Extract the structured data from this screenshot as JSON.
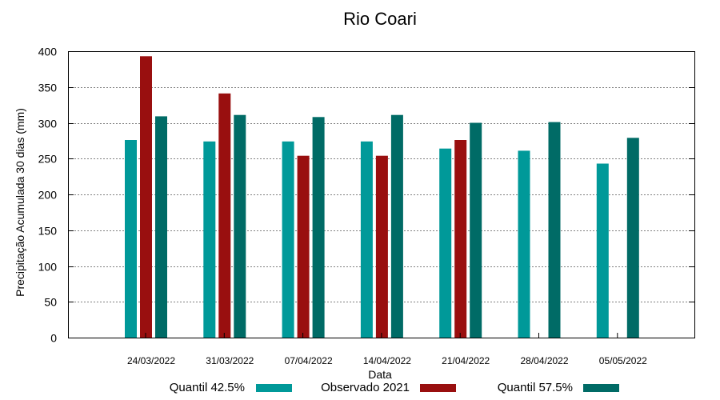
{
  "chart_data": {
    "type": "bar",
    "title": "Rio Coari",
    "xlabel": "Data",
    "ylabel": "Precipitação Acumulada 30 dias (mm)",
    "ylim": [
      0,
      400
    ],
    "yticks": [
      0,
      50,
      100,
      150,
      200,
      250,
      300,
      350,
      400
    ],
    "grid": true,
    "legend_position": "bottom",
    "categories": [
      "24/03/2022",
      "31/03/2022",
      "07/04/2022",
      "14/04/2022",
      "21/04/2022",
      "28/04/2022",
      "05/05/2022"
    ],
    "series": [
      {
        "name": "Quantil 42.5%",
        "color": "#009999",
        "values": [
          276,
          274,
          274,
          274,
          264,
          261,
          243
        ]
      },
      {
        "name": "Observado 2021",
        "color": "#990f0f",
        "values": [
          393,
          341,
          254,
          254,
          276,
          null,
          null
        ]
      },
      {
        "name": "Quantil 57.5%",
        "color": "#006b66",
        "values": [
          309,
          311,
          308,
          311,
          300,
          301,
          279
        ]
      }
    ]
  }
}
